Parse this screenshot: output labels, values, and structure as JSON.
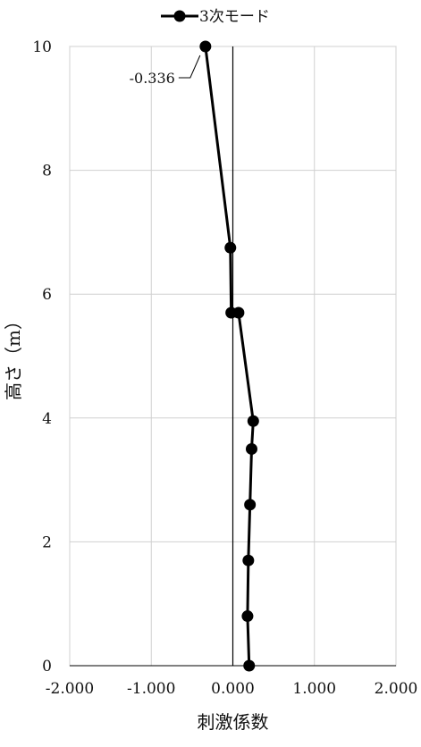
{
  "chart_data": {
    "type": "line",
    "title": "",
    "xlabel": "刺激係数",
    "ylabel": "高さ（m）",
    "xlim": [
      -2.0,
      2.0
    ],
    "ylim": [
      0,
      10
    ],
    "xticks": [
      "-2.000",
      "-1.000",
      "0.000",
      "1.000",
      "2.000"
    ],
    "yticks": [
      "0",
      "2",
      "4",
      "6",
      "8",
      "10"
    ],
    "grid": true,
    "legend_position": "top",
    "series": [
      {
        "name": "3次モード",
        "color": "#000000",
        "points": [
          {
            "x": 0.2,
            "y": 0.0
          },
          {
            "x": 0.18,
            "y": 0.8
          },
          {
            "x": 0.19,
            "y": 1.7
          },
          {
            "x": 0.21,
            "y": 2.6
          },
          {
            "x": 0.23,
            "y": 3.5
          },
          {
            "x": 0.25,
            "y": 3.95
          },
          {
            "x": 0.07,
            "y": 5.7
          },
          {
            "x": -0.02,
            "y": 5.7
          },
          {
            "x": -0.03,
            "y": 6.75
          },
          {
            "x": -0.336,
            "y": 10.0
          }
        ]
      }
    ],
    "annotations": [
      {
        "text": "-0.336",
        "x": -0.336,
        "y": 10.0
      }
    ]
  }
}
